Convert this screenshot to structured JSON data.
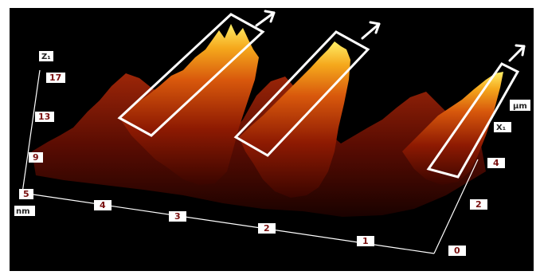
{
  "chart_data": {
    "type": "surface",
    "z_axis": {
      "label": "Z₁",
      "unit": "nm",
      "ticks": [
        "5",
        "9",
        "13",
        "17"
      ]
    },
    "x_axis": {
      "label": "X₁",
      "unit": "µm",
      "ticks": [
        "0",
        "2",
        "4"
      ]
    },
    "y_axis": {
      "ticks": [
        "1",
        "2",
        "3",
        "4"
      ]
    },
    "ridges": [
      {
        "peak_nm": 17
      },
      {
        "peak_nm": 16
      },
      {
        "peak_nm": 15
      }
    ],
    "highlight_boxes": 3,
    "arrows": 3,
    "colors": {
      "background": "#000000",
      "surface_low": "#5a0a00",
      "surface_mid": "#c8440a",
      "surface_high": "#ffe14a",
      "box": "#ffffff"
    }
  }
}
